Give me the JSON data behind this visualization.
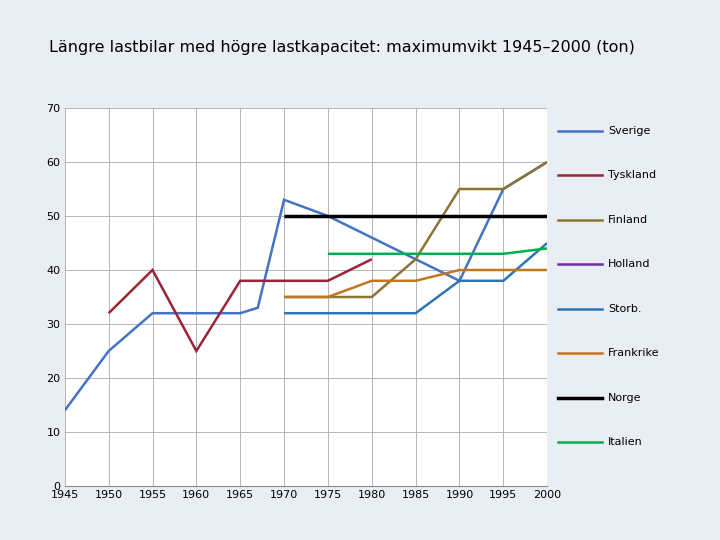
{
  "title": "Längre lastbilar med högre lastkapacitet: maximumvikt 1945–2000 (ton)",
  "title_bg": "#cfdce8",
  "bg_color": "#e8eef4",
  "plot_bg": "#ffffff",
  "ylim": [
    0,
    70
  ],
  "xlim": [
    1945,
    2000
  ],
  "yticks": [
    0,
    10,
    20,
    30,
    40,
    50,
    60,
    70
  ],
  "xticks": [
    1945,
    1950,
    1955,
    1960,
    1965,
    1970,
    1975,
    1980,
    1985,
    1990,
    1995,
    2000
  ],
  "series": {
    "Sverige": {
      "color": "#4472C4",
      "x": [
        1945,
        1950,
        1955,
        1960,
        1965,
        1967,
        1970,
        1975,
        1990,
        1995,
        2000
      ],
      "y": [
        14,
        25,
        32,
        32,
        32,
        33,
        53,
        50,
        38,
        55,
        60
      ]
    },
    "Tyskland": {
      "color": "#9B2335",
      "x": [
        1950,
        1955,
        1960,
        1965,
        1967,
        1975,
        1980
      ],
      "y": [
        32,
        40,
        25,
        38,
        38,
        38,
        42
      ]
    },
    "Finland": {
      "color": "#8B7536",
      "x": [
        1970,
        1975,
        1980,
        1985,
        1990,
        1995,
        2000
      ],
      "y": [
        35,
        35,
        35,
        42,
        55,
        55,
        60
      ]
    },
    "Holland": {
      "color": "#7030A0",
      "x": [],
      "y": []
    },
    "Storb.": {
      "color": "#2E75B6",
      "x": [
        1970,
        1975,
        1985,
        1990,
        1995,
        2000
      ],
      "y": [
        32,
        32,
        32,
        38,
        38,
        45
      ]
    },
    "Frankrike": {
      "color": "#C07820",
      "x": [
        1970,
        1975,
        1980,
        1985,
        1990,
        1995,
        2000
      ],
      "y": [
        35,
        35,
        38,
        38,
        40,
        40,
        40
      ]
    },
    "Norge": {
      "color": "#000000",
      "x": [
        1970,
        2000
      ],
      "y": [
        50,
        50
      ]
    },
    "Italien": {
      "color": "#00B050",
      "x": [
        1975,
        1985,
        1995,
        2000
      ],
      "y": [
        43,
        43,
        43,
        44
      ]
    }
  },
  "legend_names": [
    "Sverige",
    "Tyskland",
    "Finland",
    "Holland",
    "Storb.",
    "Frankrike",
    "Norge",
    "Italien"
  ]
}
